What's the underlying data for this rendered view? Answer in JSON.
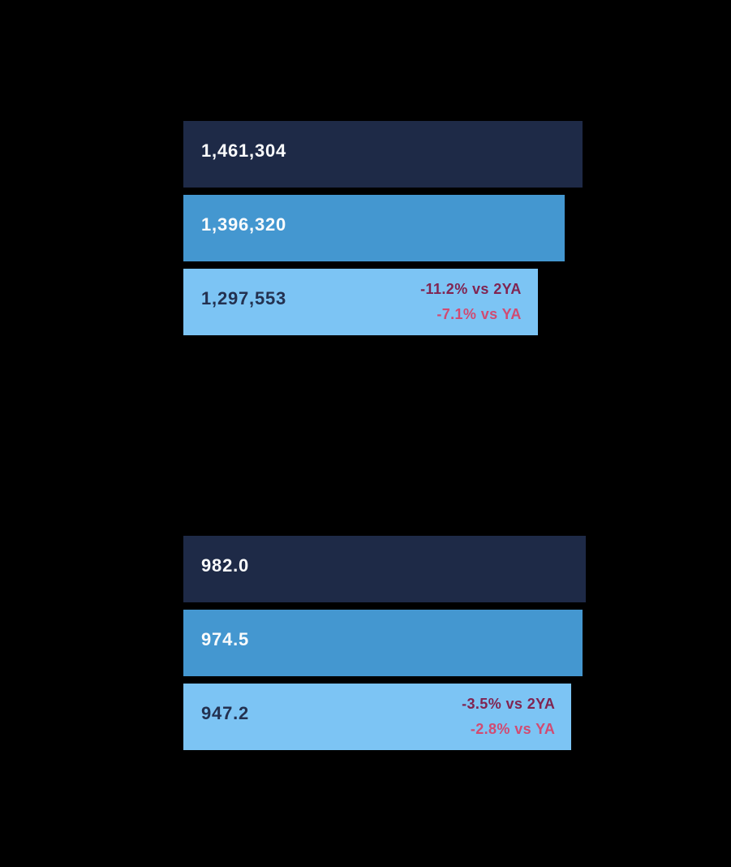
{
  "background": "#000000",
  "palette": {
    "bar_dark_navy": "#1e2a47",
    "bar_medium_blue": "#4497d0",
    "bar_light_blue": "#7cc4f4",
    "label_on_dark": "#fafbfc",
    "label_on_light": "#233150",
    "annotation_vs_2ya": "#802451",
    "annotation_vs_ya": "#d14b72"
  },
  "chart_data": [
    {
      "type": "bar",
      "orientation": "horizontal",
      "grid": false,
      "legend": "none",
      "xlim": [
        0,
        1500000
      ],
      "values": [
        1461304,
        1396320,
        1297553
      ],
      "bar_labels": [
        "1,461,304",
        "1,396,320",
        "1,297,553"
      ],
      "bar_colors": [
        "#1e2a47",
        "#4497d0",
        "#7cc4f4"
      ],
      "bar_label_colors": [
        "#fafbfc",
        "#fafbfc",
        "#233150"
      ],
      "annotations": [
        {
          "text": "-11.2% vs 2YA",
          "color": "#802451"
        },
        {
          "text": "-7.1% vs YA",
          "color": "#d14b72"
        }
      ]
    },
    {
      "type": "bar",
      "orientation": "horizontal",
      "grid": false,
      "legend": "none",
      "xlim": [
        0,
        1000
      ],
      "values": [
        982.0,
        974.5,
        947.2
      ],
      "bar_labels": [
        "982.0",
        "974.5",
        "947.2"
      ],
      "bar_colors": [
        "#1e2a47",
        "#4497d0",
        "#7cc4f4"
      ],
      "bar_label_colors": [
        "#fafbfc",
        "#fafbfc",
        "#233150"
      ],
      "annotations": [
        {
          "text": "-3.5% vs 2YA",
          "color": "#802451"
        },
        {
          "text": "-2.8% vs YA",
          "color": "#d14b72"
        }
      ]
    }
  ]
}
